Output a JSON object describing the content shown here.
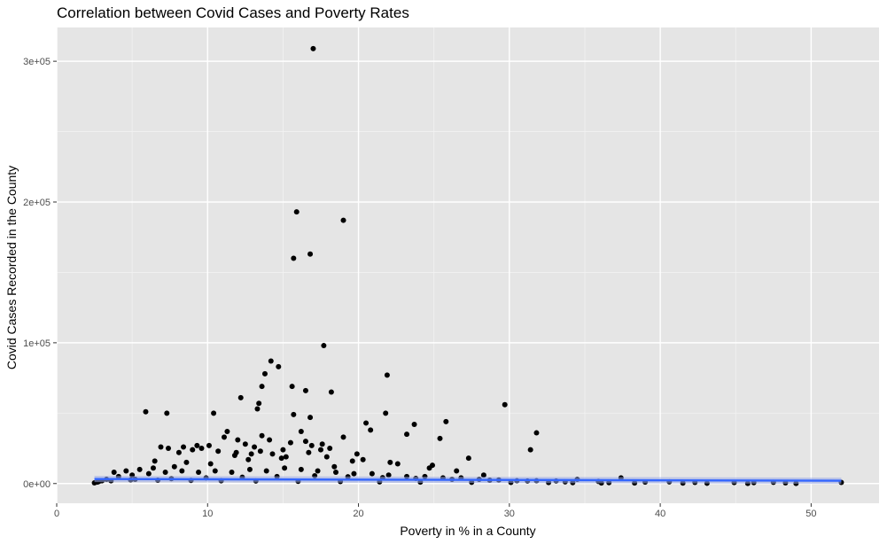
{
  "chart_data": {
    "type": "scatter",
    "title": "Correlation between Covid Cases and Poverty Rates",
    "xlabel": "Poverty in % in a County",
    "ylabel": "Covid Cases Recorded in the County",
    "xlim": [
      0,
      54.5
    ],
    "ylim": [
      -14000,
      324000
    ],
    "x_ticks": [
      0,
      10,
      20,
      30,
      40,
      50
    ],
    "x_tick_labels": [
      "0",
      "10",
      "20",
      "30",
      "40",
      "50"
    ],
    "y_ticks": [
      0,
      100000,
      200000,
      300000
    ],
    "y_tick_labels": [
      "0e+00",
      "1e+05",
      "2e+05",
      "3e+05"
    ],
    "grid": true,
    "legend": "none",
    "colors": {
      "panel_bg": "#e5e5e5",
      "grid_major": "#ffffff",
      "grid_minor": "#f2f2f2",
      "points": "#000000",
      "trend_line": "#3366ff",
      "trend_band": "#99a8e6",
      "tick_text": "#4d4d4d"
    },
    "series": [
      {
        "x": [
          17.0,
          15.9,
          19.0,
          15.7,
          16.8,
          17.7,
          14.2,
          14.7,
          13.8,
          13.6,
          21.9,
          15.6,
          16.5,
          18.2,
          13.4,
          13.3,
          12.2,
          29.7,
          15.7,
          16.8,
          10.4,
          7.3,
          5.9,
          20.5,
          21.8,
          23.7,
          25.8,
          20.8,
          31.8,
          25.4,
          16.2,
          23.2,
          19.0,
          31.4,
          27.3,
          17.6,
          16.5,
          9.6,
          11.3,
          8.4,
          12.0,
          13.6,
          6.9,
          7.4,
          9.0,
          10.7,
          11.9,
          13.1,
          14.3,
          15.0,
          16.7,
          17.9,
          19.6,
          22.1,
          24.9,
          26.5,
          28.3,
          18.4,
          14.9,
          12.7,
          10.2,
          8.6,
          7.8,
          6.4,
          5.5,
          4.6,
          3.8,
          3.0,
          2.5,
          2.7,
          3.3,
          4.1,
          5.0,
          6.1,
          7.2,
          8.3,
          9.4,
          10.5,
          11.6,
          12.8,
          13.9,
          15.1,
          16.2,
          17.3,
          18.5,
          19.7,
          20.9,
          22.0,
          23.2,
          24.4,
          25.6,
          26.8,
          28.0,
          29.3,
          30.5,
          31.8,
          33.1,
          34.5,
          35.9,
          37.4,
          39.0,
          40.6,
          42.3,
          44.9,
          46.2,
          47.5,
          48.3,
          52.0,
          36.1,
          34.2,
          32.6,
          30.1,
          27.5,
          24.1,
          21.4,
          18.8,
          16.0,
          13.2,
          10.9,
          8.9,
          6.7,
          4.9,
          3.6,
          2.8,
          5.2,
          7.6,
          9.9,
          12.3,
          14.6,
          17.1,
          19.3,
          21.6,
          23.8,
          26.2,
          28.7,
          31.2,
          33.7,
          36.6,
          38.3,
          41.5,
          43.1,
          45.8,
          49.0,
          15.5,
          14.1,
          12.5,
          11.1,
          9.3,
          8.1,
          16.9,
          18.1,
          19.9,
          20.3,
          22.6,
          24.7,
          11.8,
          13.5,
          15.2,
          6.5,
          10.1,
          12.9,
          17.5
        ],
        "y": [
          309000,
          193000,
          187000,
          160000,
          163000,
          98000,
          87000,
          83000,
          78000,
          69000,
          77000,
          69000,
          66000,
          65000,
          57000,
          53000,
          61000,
          56000,
          49000,
          47000,
          50000,
          50000,
          51000,
          43000,
          50000,
          42000,
          44000,
          38000,
          36000,
          32000,
          37000,
          35000,
          33000,
          24000,
          18000,
          28000,
          30000,
          25000,
          37000,
          26000,
          31000,
          34000,
          26000,
          25000,
          24000,
          23000,
          22000,
          26000,
          21000,
          24000,
          22000,
          19000,
          16000,
          15000,
          13000,
          9000,
          6000,
          12000,
          18000,
          17000,
          14000,
          15000,
          12000,
          11000,
          10000,
          9000,
          8000,
          2000,
          500,
          1000,
          3000,
          5000,
          6000,
          7000,
          8000,
          9000,
          8000,
          9000,
          8000,
          10000,
          9000,
          11000,
          10000,
          9000,
          8000,
          7000,
          7000,
          6000,
          5000,
          5000,
          4000,
          4000,
          3000,
          2500,
          2000,
          2000,
          1800,
          3000,
          1500,
          4000,
          1000,
          1200,
          800,
          700,
          600,
          900,
          500,
          800,
          400,
          600,
          700,
          800,
          900,
          1000,
          1200,
          1400,
          1600,
          1800,
          2000,
          2200,
          2400,
          2600,
          2000,
          1500,
          3000,
          3500,
          4000,
          4500,
          5000,
          5500,
          4800,
          4200,
          3600,
          3000,
          2400,
          1800,
          1200,
          600,
          400,
          300,
          200,
          100,
          50,
          29000,
          31000,
          28000,
          33000,
          27000,
          22000,
          27000,
          25000,
          21000,
          17000,
          14000,
          11000,
          20000,
          23000,
          19000,
          16000,
          27000,
          21000,
          24000
        ]
      }
    ],
    "trend": {
      "x": [
        2.5,
        52.0
      ],
      "y": [
        3200,
        2000
      ]
    }
  }
}
